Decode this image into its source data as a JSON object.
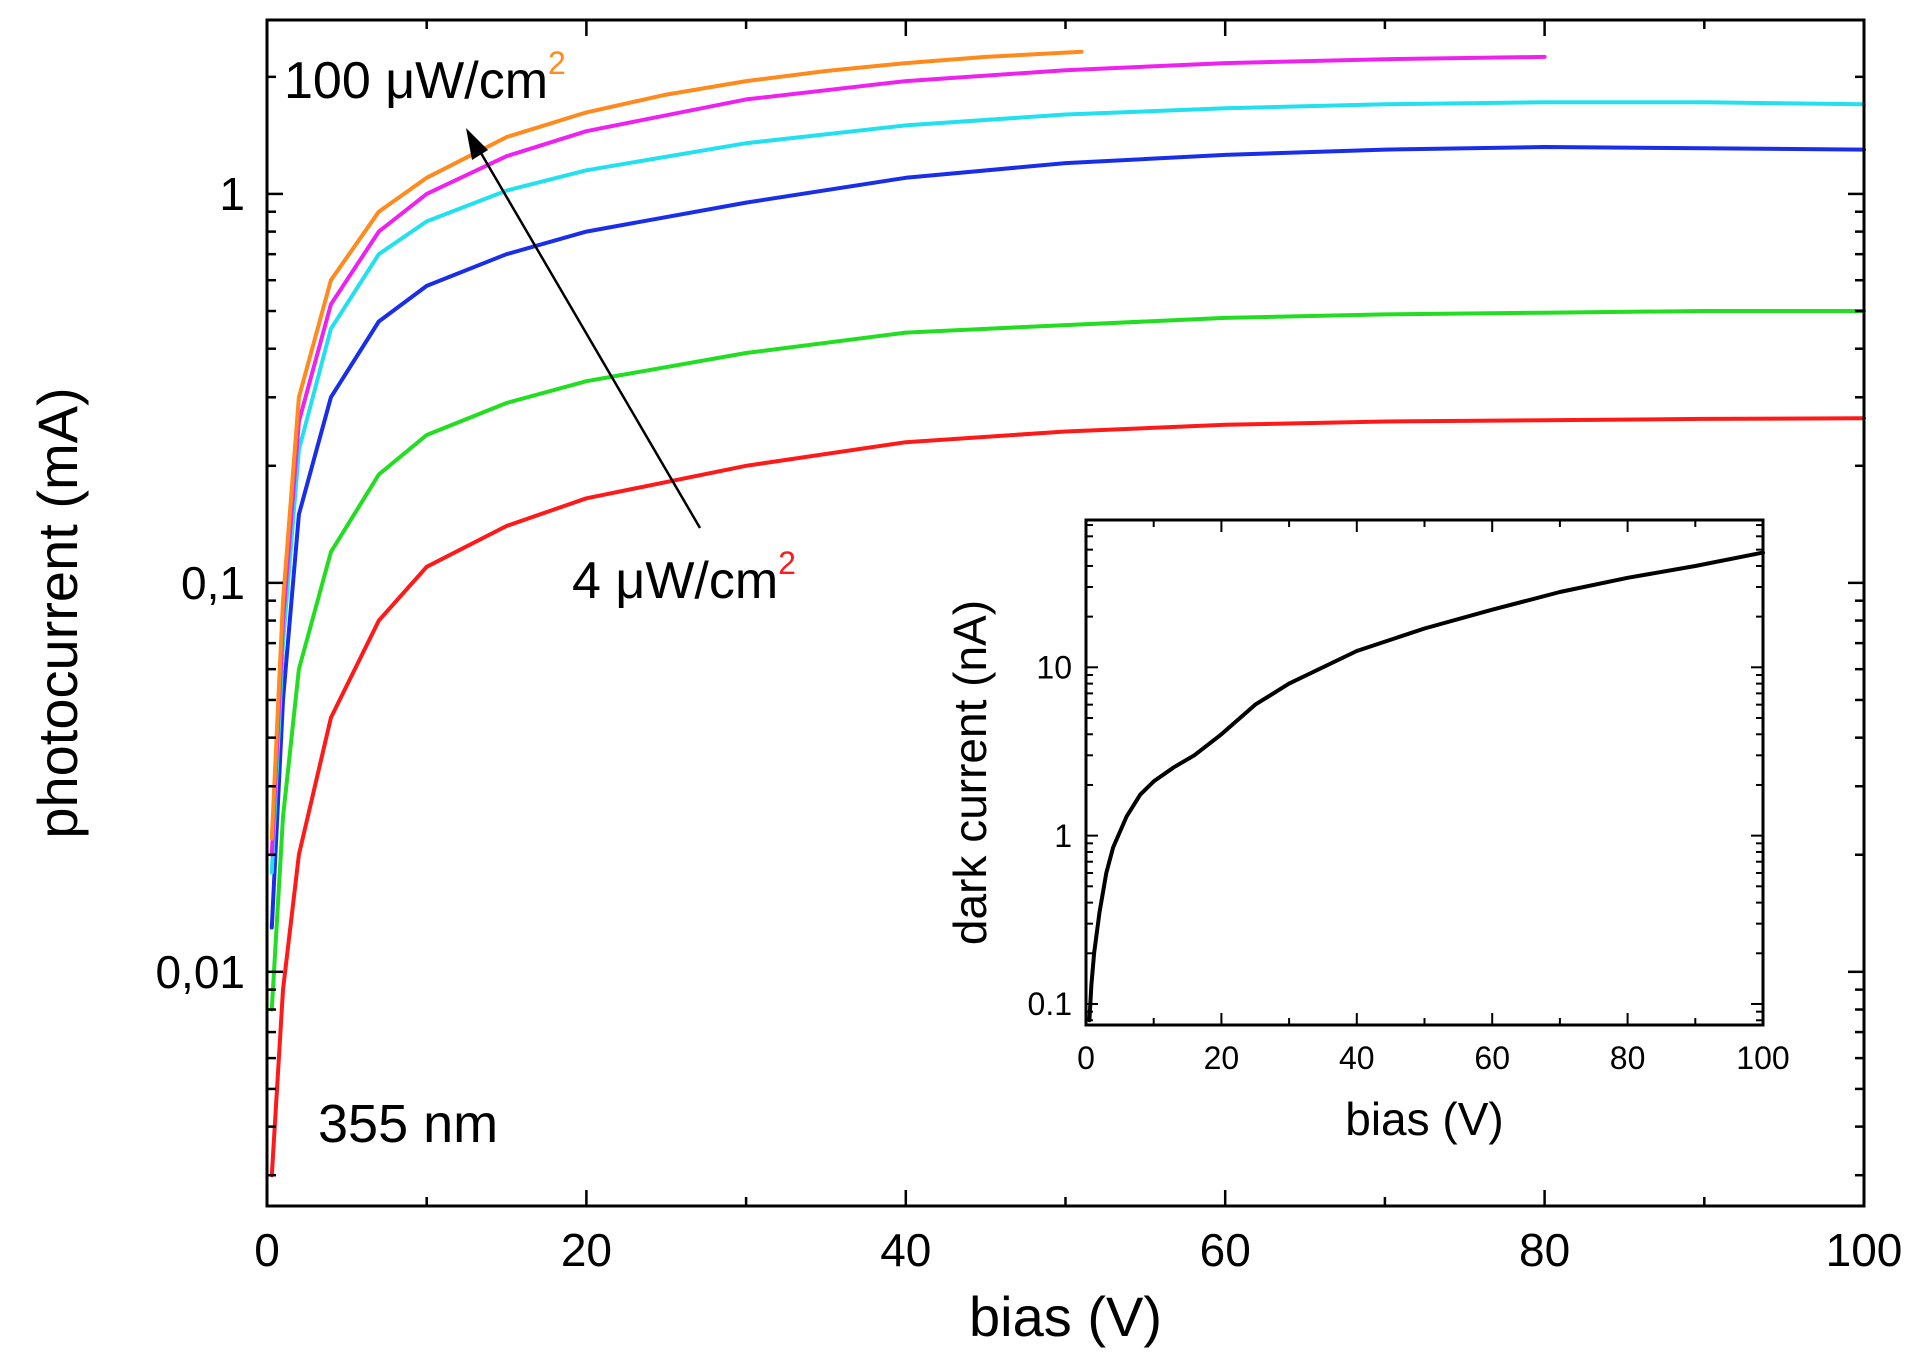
{
  "chart_data": [
    {
      "type": "line",
      "xlabel": "bias (V)",
      "ylabel": "photocurrent (mA)",
      "xlim": [
        0,
        100
      ],
      "ylim": [
        0.0025,
        2.8
      ],
      "yscale": "log",
      "grid": false,
      "x_ticks": [
        "0",
        "20",
        "40",
        "60",
        "80",
        "100"
      ],
      "y_ticks": [
        "0,01",
        "0,1",
        "1"
      ],
      "annotations": {
        "wavelength": "355 nm",
        "high_label": "100 μW/cm",
        "low_label": "4 μW/cm",
        "superscript": "2"
      },
      "colors": {
        "high_label": "#ff8a1e",
        "low_label": "#ff1a1a",
        "arrow": "#000000"
      },
      "series": [
        {
          "color": "#ff1a1a",
          "x": [
            0.3,
            1,
            2,
            4,
            7,
            10,
            15,
            20,
            30,
            40,
            50,
            60,
            70,
            80,
            90,
            100
          ],
          "y": [
            0.003,
            0.009,
            0.02,
            0.045,
            0.08,
            0.11,
            0.14,
            0.165,
            0.2,
            0.23,
            0.245,
            0.255,
            0.26,
            0.262,
            0.264,
            0.265
          ]
        },
        {
          "color": "#22dd22",
          "x": [
            0.3,
            1,
            2,
            4,
            7,
            10,
            15,
            20,
            30,
            40,
            50,
            60,
            70,
            80,
            90,
            100
          ],
          "y": [
            0.008,
            0.025,
            0.06,
            0.12,
            0.19,
            0.24,
            0.29,
            0.33,
            0.39,
            0.44,
            0.46,
            0.48,
            0.49,
            0.495,
            0.5,
            0.5
          ]
        },
        {
          "color": "#1a2ee8",
          "x": [
            0.3,
            1,
            2,
            4,
            7,
            10,
            15,
            20,
            30,
            40,
            50,
            60,
            70,
            80,
            90,
            100
          ],
          "y": [
            0.013,
            0.05,
            0.15,
            0.3,
            0.47,
            0.58,
            0.7,
            0.8,
            0.95,
            1.1,
            1.2,
            1.26,
            1.3,
            1.32,
            1.31,
            1.3
          ]
        },
        {
          "color": "#22e0ee",
          "x": [
            0.3,
            1,
            2,
            4,
            7,
            10,
            15,
            20,
            30,
            40,
            50,
            60,
            70,
            80,
            90,
            100
          ],
          "y": [
            0.018,
            0.07,
            0.22,
            0.45,
            0.7,
            0.85,
            1.02,
            1.15,
            1.35,
            1.5,
            1.6,
            1.66,
            1.7,
            1.72,
            1.72,
            1.7
          ]
        },
        {
          "color": "#ee22ee",
          "x": [
            0.3,
            1,
            2,
            4,
            7,
            10,
            15,
            20,
            30,
            40,
            50,
            60,
            70,
            80
          ],
          "y": [
            0.02,
            0.08,
            0.26,
            0.52,
            0.8,
            1.0,
            1.25,
            1.45,
            1.75,
            1.95,
            2.08,
            2.17,
            2.22,
            2.25
          ]
        },
        {
          "color": "#ff8a1e",
          "x": [
            0.3,
            1,
            2,
            4,
            7,
            10,
            15,
            20,
            25,
            30,
            35,
            40,
            45,
            51
          ],
          "y": [
            0.022,
            0.09,
            0.3,
            0.6,
            0.9,
            1.1,
            1.4,
            1.62,
            1.8,
            1.95,
            2.07,
            2.17,
            2.25,
            2.32
          ]
        }
      ]
    },
    {
      "type": "line",
      "xlabel": "bias (V)",
      "ylabel": "dark current (nA)",
      "xlim": [
        0,
        100
      ],
      "ylim": [
        0.075,
        75
      ],
      "yscale": "log",
      "grid": false,
      "x_ticks": [
        "0",
        "20",
        "40",
        "60",
        "80",
        "100"
      ],
      "y_ticks": [
        "0.1",
        "1",
        "10"
      ],
      "series": [
        {
          "color": "#000000",
          "x": [
            0.5,
            0.8,
            1.2,
            2,
            3,
            4,
            6,
            8,
            10,
            13,
            16,
            20,
            25,
            30,
            40,
            50,
            60,
            70,
            80,
            90,
            100
          ],
          "y": [
            0.08,
            0.13,
            0.2,
            0.35,
            0.6,
            0.85,
            1.3,
            1.75,
            2.1,
            2.55,
            3.0,
            4.0,
            6.0,
            8.0,
            12.5,
            17,
            22,
            28,
            34,
            40,
            48
          ]
        }
      ]
    }
  ]
}
